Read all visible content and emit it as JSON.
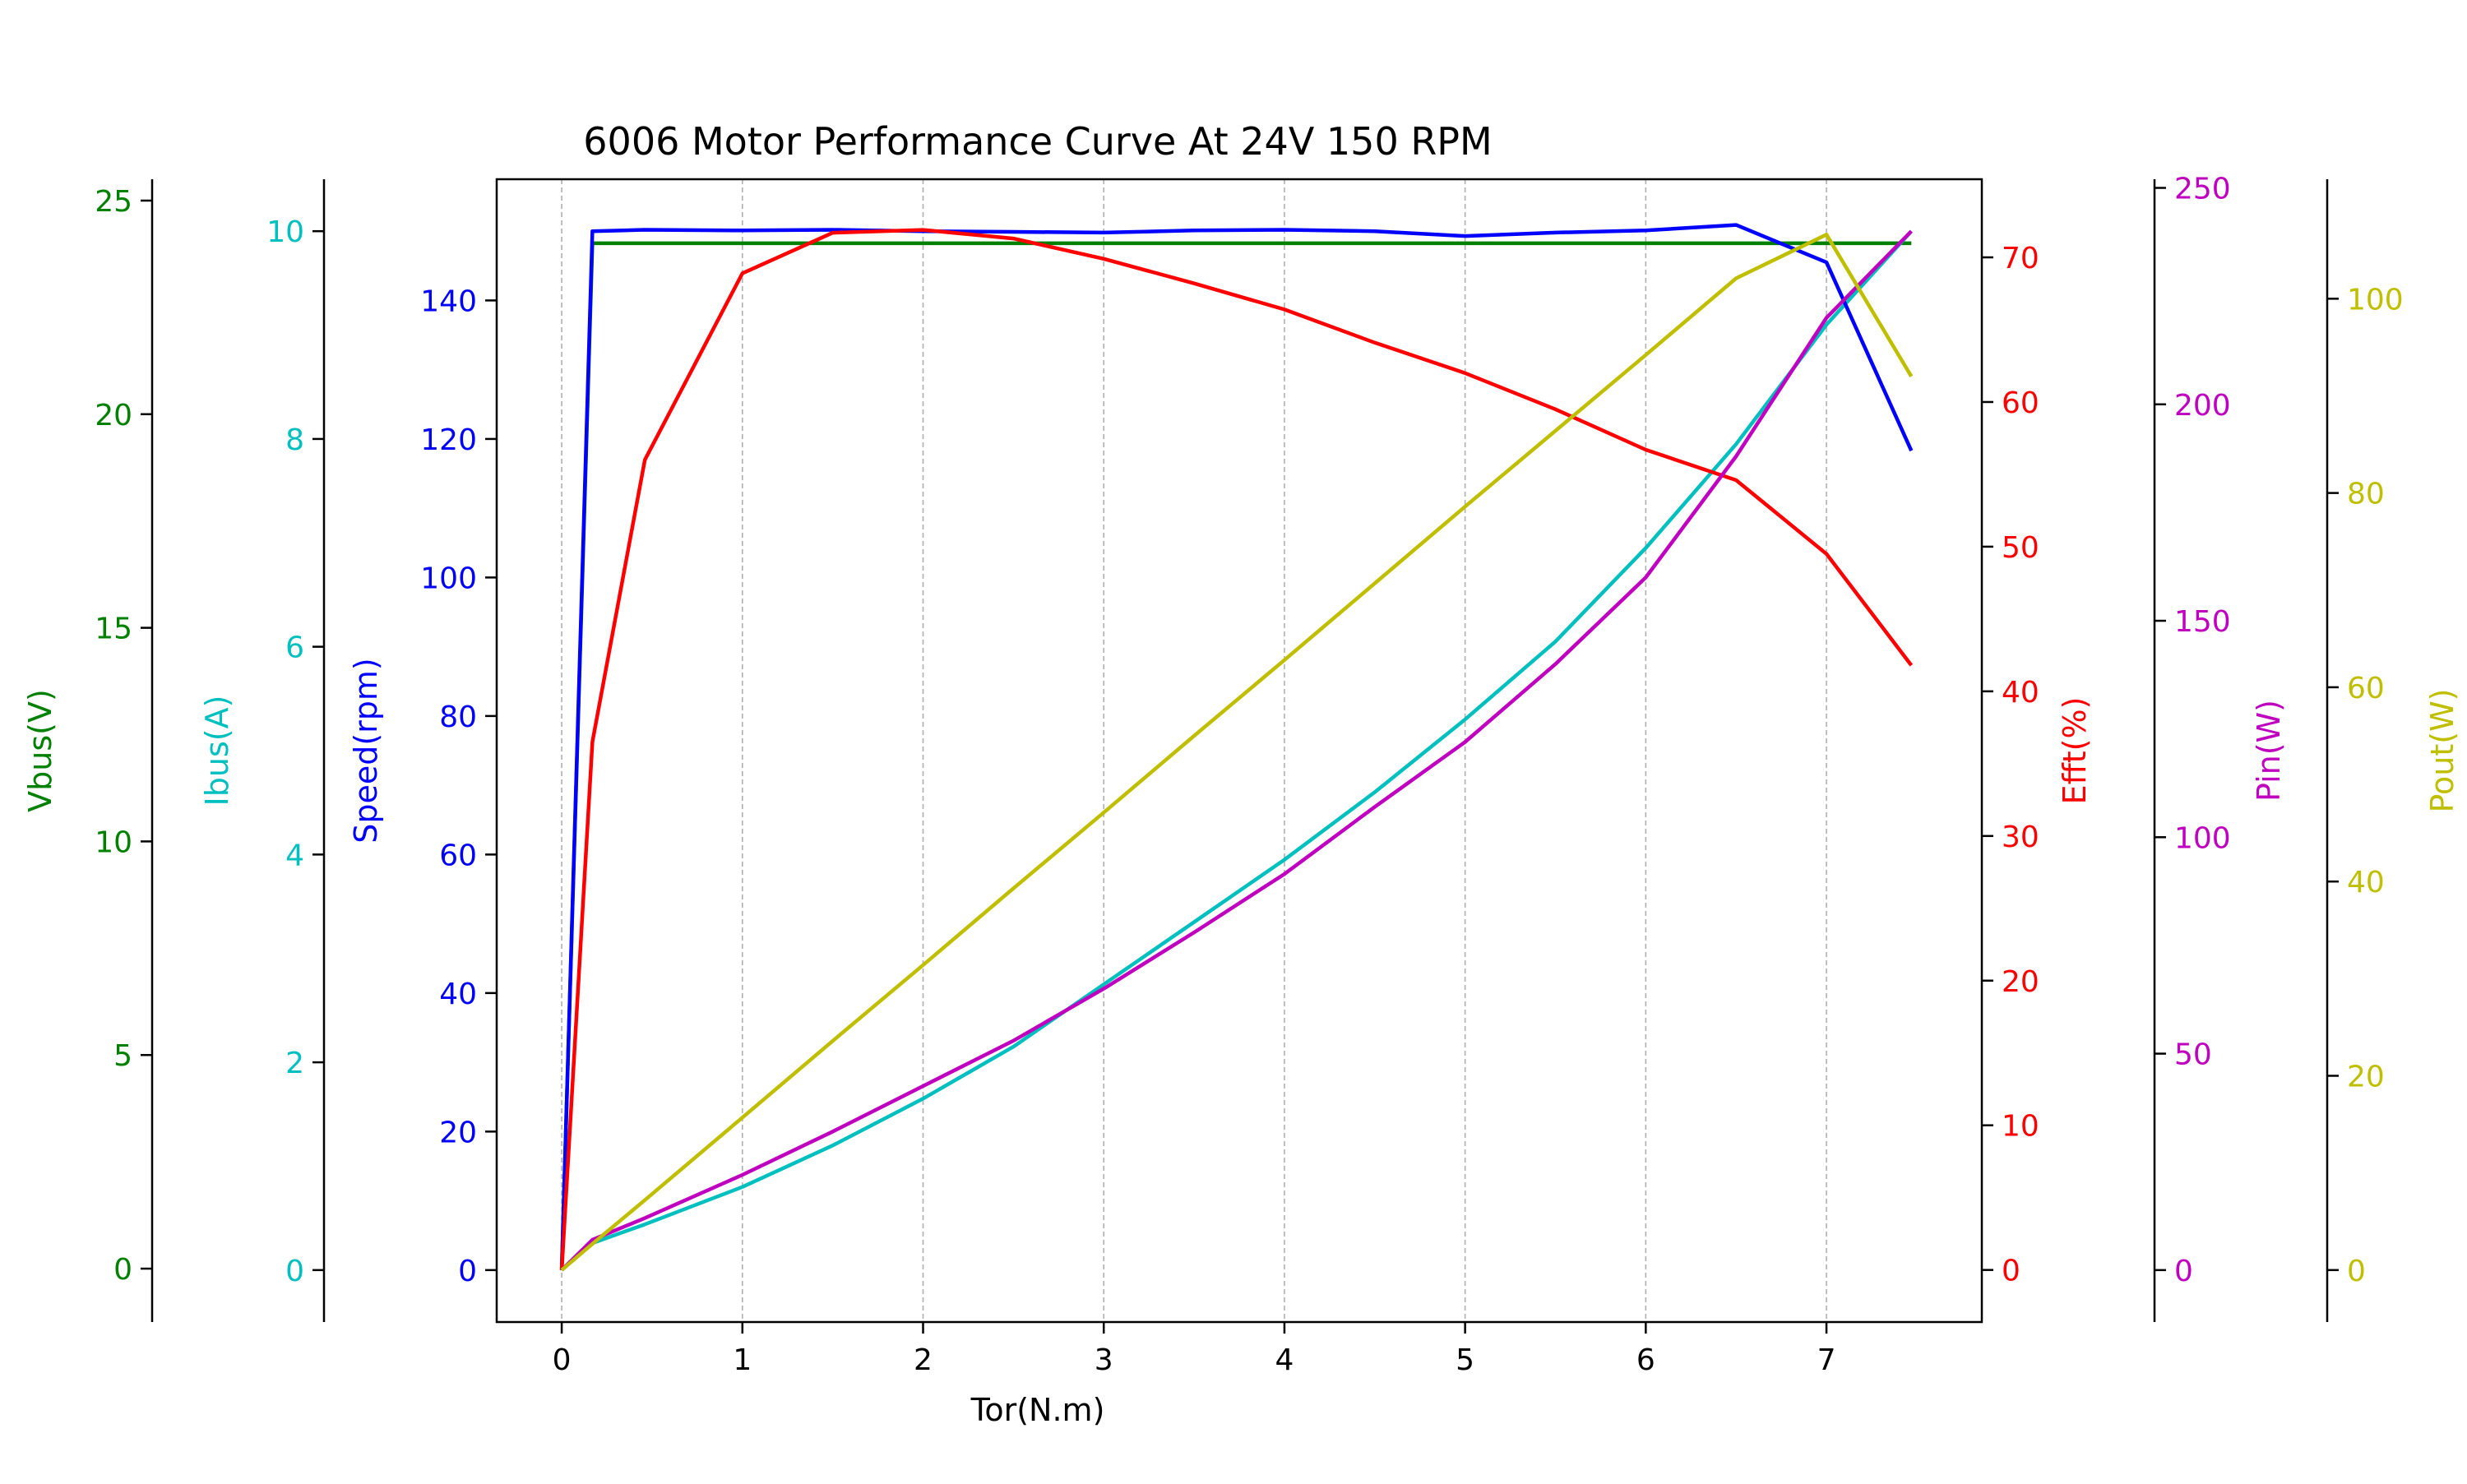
{
  "chart_data": {
    "type": "line",
    "title": "6006 Motor Performance Curve At 24V 150 RPM",
    "xlabel": "Tor(N.m)",
    "xlim": [
      -0.36,
      7.86
    ],
    "xticks": [
      0,
      1,
      2,
      3,
      4,
      5,
      6,
      7
    ],
    "grid": "vertical dashed",
    "x": [
      0,
      0.17,
      0.46,
      1.0,
      1.5,
      2.0,
      2.5,
      3.0,
      3.5,
      4.0,
      4.5,
      5.0,
      5.5,
      6.0,
      6.5,
      7.0,
      7.47
    ],
    "axes": [
      {
        "id": "vbus",
        "label": "Vbus(V)",
        "color": "#008000",
        "side": "left",
        "ylim": [
          -1.25,
          25.5
        ],
        "ticks": [
          0,
          5,
          10,
          15,
          20,
          25
        ]
      },
      {
        "id": "ibus",
        "label": "Ibus(A)",
        "color": "#00bfbf",
        "side": "left",
        "ylim": [
          -0.5,
          10.5
        ],
        "ticks": [
          0,
          2,
          4,
          6,
          8,
          10
        ]
      },
      {
        "id": "speed",
        "label": "Speed(rpm)",
        "color": "#0000ff",
        "side": "left",
        "ylim": [
          -7.5,
          157.5
        ],
        "ticks": [
          0,
          20,
          40,
          60,
          80,
          100,
          120,
          140
        ]
      },
      {
        "id": "efft",
        "label": "Efft(%)",
        "color": "#ff0000",
        "side": "right",
        "ylim": [
          -3.6,
          75.4
        ],
        "ticks": [
          0,
          10,
          20,
          30,
          40,
          50,
          60,
          70
        ]
      },
      {
        "id": "pin",
        "label": "Pin(W)",
        "color": "#bf00bf",
        "side": "right",
        "ylim": [
          -12,
          252
        ],
        "ticks": [
          0,
          50,
          100,
          150,
          200,
          250
        ]
      },
      {
        "id": "pout",
        "label": "Pout(W)",
        "color": "#bfbf00",
        "side": "right",
        "ylim": [
          -5.35,
          112.3
        ],
        "ticks": [
          0,
          20,
          40,
          60,
          80,
          100
        ]
      }
    ],
    "series": [
      {
        "name": "Vbus(V)",
        "axis": "vbus",
        "color": "#008000",
        "values": [
          0,
          24,
          24,
          24,
          24,
          24,
          24,
          24,
          24,
          24,
          24,
          24,
          24,
          24,
          24,
          24,
          24
        ]
      },
      {
        "name": "Ibus(A)",
        "axis": "ibus",
        "color": "#00bfbf",
        "values": [
          0,
          0.26,
          0.44,
          0.8,
          1.2,
          1.65,
          2.15,
          2.75,
          3.35,
          3.95,
          4.6,
          5.3,
          6.05,
          6.95,
          7.95,
          9.1,
          10.0
        ]
      },
      {
        "name": "Speed(rpm)",
        "axis": "speed",
        "color": "#0000ff",
        "values": [
          0,
          150,
          150.2,
          150.1,
          150.2,
          150,
          149.9,
          149.8,
          150.1,
          150.2,
          150,
          149.3,
          149.8,
          150.1,
          150.9,
          145.5,
          118.3
        ]
      },
      {
        "name": "Efft(%)",
        "axis": "efft",
        "color": "#ff0000",
        "values": [
          0,
          36.5,
          56,
          68.9,
          71.7,
          71.9,
          71.3,
          69.9,
          68.2,
          66.4,
          64.1,
          62,
          59.5,
          56.7,
          54.6,
          49.5,
          41.8
        ]
      },
      {
        "name": "Pin(W)",
        "axis": "pin",
        "color": "#bf00bf",
        "values": [
          0,
          7,
          12,
          22,
          32,
          42.5,
          53,
          65,
          78,
          91.5,
          107,
          122,
          140,
          160,
          188,
          220,
          240
        ]
      },
      {
        "name": "Pout(W)",
        "axis": "pout",
        "color": "#bfbf00",
        "values": [
          0,
          2.7,
          7.2,
          15.7,
          23.6,
          31.4,
          39.3,
          47.1,
          55,
          62.8,
          70.7,
          78.6,
          86.4,
          94.2,
          102.1,
          106.6,
          92
        ]
      }
    ]
  }
}
